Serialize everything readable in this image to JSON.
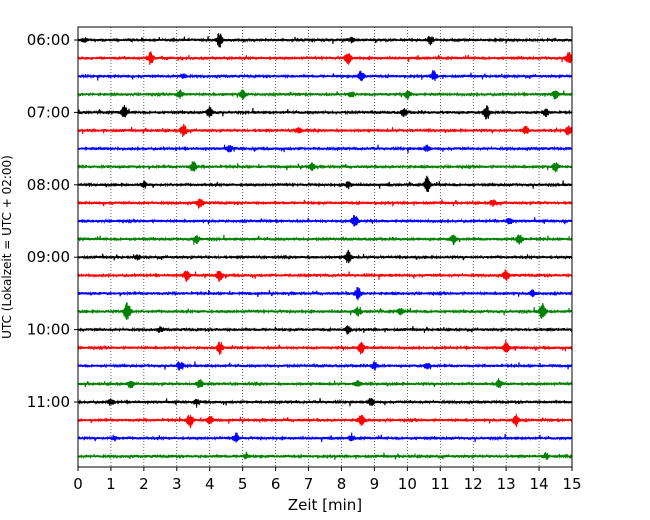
{
  "chart_data": {
    "type": "line",
    "title": "",
    "xlabel": "Zeit  [min]",
    "ylabel": "UTC (Lokalzeit = UTC + 02:00)",
    "xlim": [
      0,
      15
    ],
    "x_ticks": [
      "0",
      "1",
      "2",
      "3",
      "4",
      "5",
      "6",
      "7",
      "8",
      "9",
      "10",
      "11",
      "12",
      "13",
      "14",
      "15"
    ],
    "y_tick_labels": [
      "06:00",
      "07:00",
      "08:00",
      "09:00",
      "10:00",
      "11:00"
    ],
    "trace_interval_minutes": 15,
    "start_time": "06:00",
    "trace_count": 24,
    "vertical_grid": true,
    "grid_style": "dotted",
    "colors": [
      "#000000",
      "#ff0000",
      "#0000ff",
      "#008000"
    ],
    "series": [
      {
        "start": "06:00",
        "color": "#000000",
        "events": [
          [
            4.3,
            7
          ],
          [
            10.7,
            4
          ],
          [
            0.2,
            2
          ],
          [
            8.3,
            2
          ]
        ]
      },
      {
        "start": "06:15",
        "color": "#ff0000",
        "events": [
          [
            2.2,
            6
          ],
          [
            8.2,
            6
          ],
          [
            14.9,
            6
          ]
        ]
      },
      {
        "start": "06:30",
        "color": "#0000ff",
        "events": [
          [
            8.6,
            5
          ],
          [
            10.8,
            5
          ],
          [
            3.2,
            2
          ]
        ]
      },
      {
        "start": "06:45",
        "color": "#008000",
        "events": [
          [
            3.1,
            4
          ],
          [
            5.0,
            5
          ],
          [
            8.3,
            3
          ],
          [
            10.0,
            4
          ],
          [
            14.5,
            4
          ]
        ]
      },
      {
        "start": "07:00",
        "color": "#000000",
        "events": [
          [
            1.4,
            6
          ],
          [
            4.0,
            5
          ],
          [
            9.9,
            4
          ],
          [
            12.4,
            7
          ],
          [
            14.2,
            4
          ]
        ]
      },
      {
        "start": "07:15",
        "color": "#ff0000",
        "events": [
          [
            3.2,
            6
          ],
          [
            6.7,
            3
          ],
          [
            13.6,
            4
          ],
          [
            14.9,
            5
          ]
        ]
      },
      {
        "start": "07:30",
        "color": "#0000ff",
        "events": [
          [
            4.6,
            3
          ],
          [
            10.6,
            3
          ]
        ]
      },
      {
        "start": "07:45",
        "color": "#008000",
        "events": [
          [
            3.5,
            5
          ],
          [
            7.1,
            3
          ],
          [
            14.5,
            5
          ]
        ]
      },
      {
        "start": "08:00",
        "color": "#000000",
        "events": [
          [
            10.6,
            8
          ],
          [
            2.0,
            3
          ],
          [
            8.2,
            3
          ]
        ]
      },
      {
        "start": "08:15",
        "color": "#ff0000",
        "events": [
          [
            3.7,
            5
          ],
          [
            12.6,
            3
          ]
        ]
      },
      {
        "start": "08:30",
        "color": "#0000ff",
        "events": [
          [
            8.4,
            6
          ],
          [
            13.1,
            3
          ]
        ]
      },
      {
        "start": "08:45",
        "color": "#008000",
        "events": [
          [
            3.6,
            4
          ],
          [
            11.4,
            5
          ],
          [
            13.4,
            5
          ]
        ]
      },
      {
        "start": "09:00",
        "color": "#000000",
        "events": [
          [
            8.2,
            6
          ],
          [
            1.8,
            2
          ]
        ]
      },
      {
        "start": "09:15",
        "color": "#ff0000",
        "events": [
          [
            3.3,
            5
          ],
          [
            4.3,
            6
          ],
          [
            13.0,
            5
          ]
        ]
      },
      {
        "start": "09:30",
        "color": "#0000ff",
        "events": [
          [
            8.5,
            6
          ],
          [
            13.8,
            3
          ]
        ]
      },
      {
        "start": "09:45",
        "color": "#008000",
        "events": [
          [
            1.5,
            10
          ],
          [
            8.5,
            4
          ],
          [
            9.8,
            3
          ],
          [
            14.1,
            8
          ]
        ]
      },
      {
        "start": "10:00",
        "color": "#000000",
        "events": [
          [
            8.2,
            4
          ],
          [
            2.5,
            2
          ]
        ]
      },
      {
        "start": "10:15",
        "color": "#ff0000",
        "events": [
          [
            4.3,
            6
          ],
          [
            8.6,
            6
          ],
          [
            13.0,
            5
          ]
        ]
      },
      {
        "start": "10:30",
        "color": "#0000ff",
        "events": [
          [
            3.1,
            5
          ],
          [
            9.0,
            4
          ],
          [
            10.6,
            3
          ]
        ]
      },
      {
        "start": "10:45",
        "color": "#008000",
        "events": [
          [
            1.6,
            3
          ],
          [
            3.7,
            4
          ],
          [
            8.5,
            3
          ],
          [
            12.8,
            4
          ]
        ]
      },
      {
        "start": "11:00",
        "color": "#000000",
        "events": [
          [
            1.0,
            3
          ],
          [
            3.6,
            3
          ],
          [
            8.9,
            4
          ]
        ]
      },
      {
        "start": "11:15",
        "color": "#ff0000",
        "events": [
          [
            3.4,
            7
          ],
          [
            4.0,
            4
          ],
          [
            8.6,
            5
          ],
          [
            13.3,
            6
          ]
        ]
      },
      {
        "start": "11:30",
        "color": "#0000ff",
        "events": [
          [
            4.8,
            5
          ],
          [
            1.1,
            2
          ],
          [
            8.3,
            3
          ]
        ]
      },
      {
        "start": "11:45",
        "color": "#008000",
        "events": [
          [
            5.1,
            2
          ],
          [
            14.2,
            3
          ]
        ]
      }
    ]
  }
}
